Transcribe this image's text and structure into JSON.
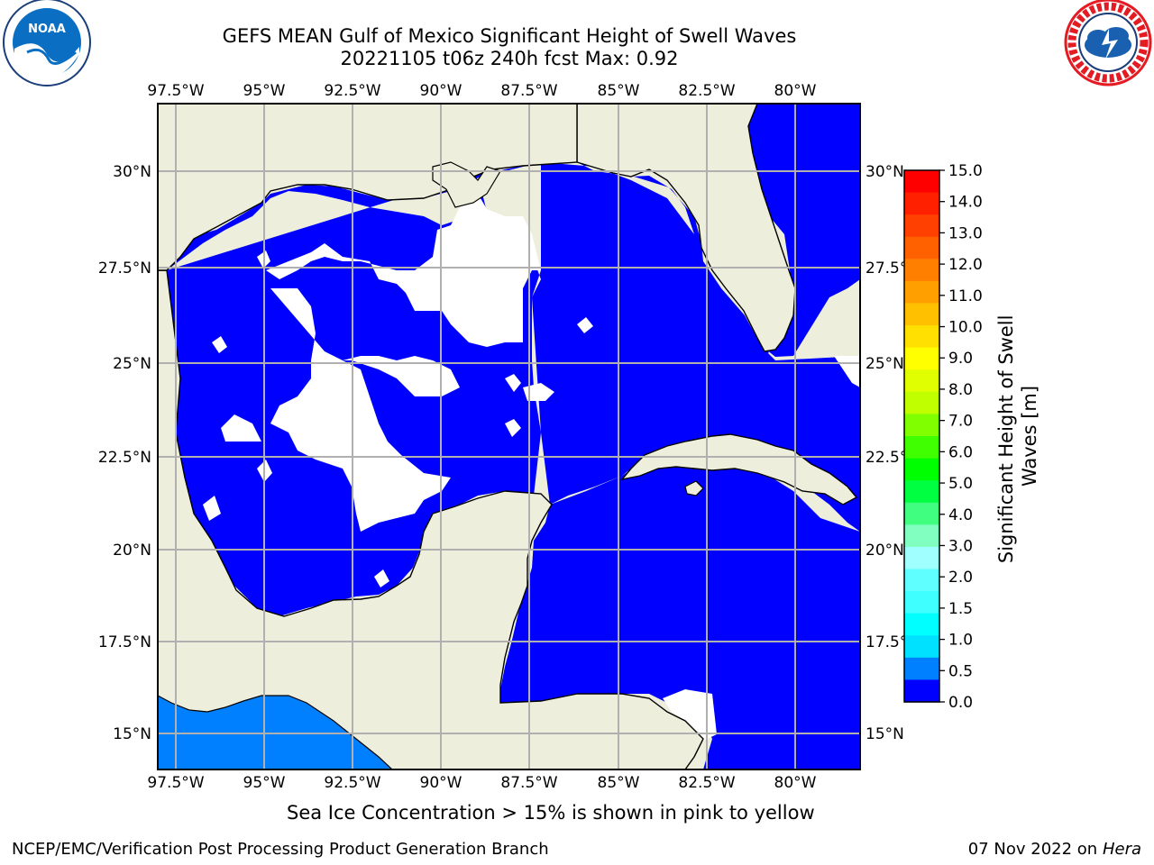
{
  "header": {
    "title": "GEFS MEAN Gulf of Mexico Significant Height of Swell Waves",
    "subtitle": "20221105 t06z 240h fcst   Max: 0.92"
  },
  "logos": {
    "left": {
      "text": "NOAA",
      "icon": "noaa-logo",
      "color": "#0a6fc2"
    },
    "right": {
      "icon": "nws-logo",
      "ring_text": "NATIONAL WEATHER SERVICE",
      "color": "#e31b23"
    }
  },
  "map": {
    "lon_ticks": [
      "97.5°W",
      "95°W",
      "92.5°W",
      "90°W",
      "87.5°W",
      "85°W",
      "82.5°W",
      "80°W"
    ],
    "lat_ticks": [
      "30°N",
      "27.5°N",
      "25°N",
      "22.5°N",
      "20°N",
      "17.5°N",
      "15°N"
    ],
    "lon_range": [
      -98,
      -78
    ],
    "lat_range": [
      14,
      32
    ],
    "grid": true,
    "colors": {
      "land": "#eeeedc",
      "ocean_low": "#0000ff",
      "ocean_mid": "#0080ff",
      "no_data": "#ffffff",
      "grid": "#b0b0b0"
    }
  },
  "colorbar": {
    "label": "Significant Height of Swell Waves [m]",
    "ticks": [
      "15.0",
      "14.0",
      "13.0",
      "12.0",
      "11.0",
      "10.0",
      "9.0",
      "8.0",
      "7.0",
      "6.0",
      "5.0",
      "4.0",
      "3.0",
      "2.0",
      "1.5",
      "1.0",
      "0.5",
      "0.0"
    ],
    "colors": [
      "#ff0000",
      "#ff2000",
      "#ff4000",
      "#ff6000",
      "#ff8000",
      "#ffa000",
      "#ffc000",
      "#ffe000",
      "#ffff00",
      "#e0ff00",
      "#c0ff00",
      "#80ff00",
      "#40ff00",
      "#00ff00",
      "#00ff40",
      "#40ff80",
      "#80ffc0",
      "#a0ffff",
      "#60ffff",
      "#40ffff",
      "#00ffff",
      "#00e0ff",
      "#0080ff",
      "#0000ff"
    ]
  },
  "footer": {
    "ice_note": "Sea Ice Concentration > 15% is shown in pink to yellow",
    "credit": "NCEP/EMC/Verification Post Processing Product Generation Branch",
    "date": "07 Nov 2022 on",
    "host": "Hera"
  }
}
